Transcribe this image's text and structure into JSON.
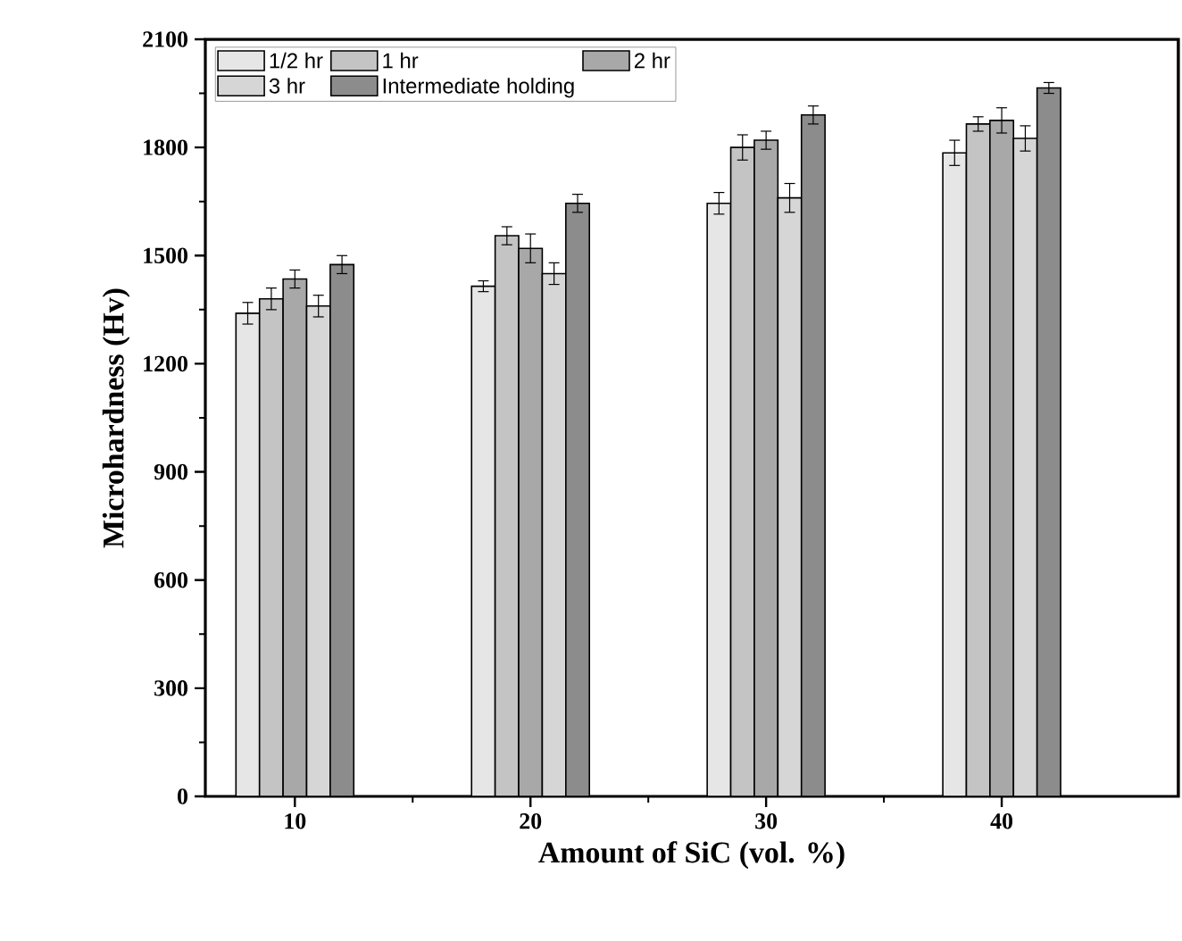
{
  "chart_data": {
    "type": "bar",
    "xlabel": "Amount of SiC (vol. %)",
    "ylabel": "Microhardness (Hv)",
    "categories": [
      "10",
      "20",
      "30",
      "40"
    ],
    "series": [
      {
        "name": "1/2 hr",
        "color": "#e6e6e6",
        "values": [
          1340,
          1415,
          1645,
          1785
        ],
        "errors": [
          30,
          15,
          30,
          35
        ]
      },
      {
        "name": "1 hr",
        "color": "#c4c4c4",
        "values": [
          1380,
          1555,
          1800,
          1865
        ],
        "errors": [
          30,
          25,
          35,
          20
        ]
      },
      {
        "name": "2 hr",
        "color": "#a8a8a8",
        "values": [
          1435,
          1520,
          1820,
          1875
        ],
        "errors": [
          25,
          40,
          25,
          35
        ]
      },
      {
        "name": "3 hr",
        "color": "#d6d6d6",
        "values": [
          1360,
          1450,
          1660,
          1825
        ],
        "errors": [
          30,
          30,
          40,
          35
        ]
      },
      {
        "name": "Intermediate holding",
        "color": "#8c8c8c",
        "values": [
          1475,
          1645,
          1890,
          1965
        ],
        "errors": [
          25,
          25,
          25,
          15
        ]
      }
    ],
    "ylim": [
      0,
      2100
    ],
    "yticks": [
      0,
      300,
      600,
      900,
      1200,
      1500,
      1800,
      2100
    ],
    "grid": false,
    "legend": "top left"
  }
}
